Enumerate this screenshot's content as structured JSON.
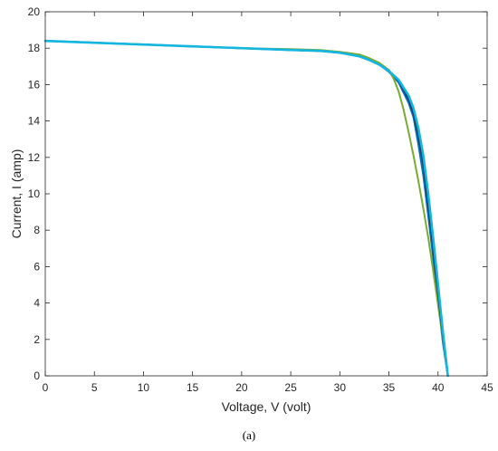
{
  "chart_data": {
    "type": "line",
    "xlabel": "Voltage, V (volt)",
    "ylabel": "Current, I (amp)",
    "xlim": [
      0,
      45
    ],
    "ylim": [
      0,
      20
    ],
    "xticks": [
      0,
      5,
      10,
      15,
      20,
      25,
      30,
      35,
      40,
      45
    ],
    "yticks": [
      0,
      2,
      4,
      6,
      8,
      10,
      12,
      14,
      16,
      18,
      20
    ],
    "grid": false,
    "legend": "none",
    "series": [
      {
        "color": "#0072BD",
        "width": 2,
        "x": [
          0,
          5,
          10,
          15,
          20,
          25,
          28,
          30,
          32,
          33,
          34,
          35,
          36,
          37,
          37.5,
          38,
          38.5,
          39,
          39.5,
          40,
          40.5,
          41
        ],
        "y": [
          18.4,
          18.3,
          18.2,
          18.1,
          18.0,
          17.9,
          17.85,
          17.75,
          17.55,
          17.35,
          17.1,
          16.7,
          16.1,
          15.0,
          14.2,
          12.7,
          11.0,
          8.8,
          6.5,
          4.2,
          1.8,
          0
        ]
      },
      {
        "color": "#77AC30",
        "width": 2,
        "x": [
          0,
          5,
          10,
          15,
          20,
          25,
          28,
          30,
          32,
          33,
          34,
          35,
          35.5,
          36,
          36.5,
          37,
          37.5,
          38,
          38.5,
          39,
          39.5,
          40,
          40.5,
          41
        ],
        "y": [
          18.4,
          18.3,
          18.2,
          18.1,
          18.0,
          17.95,
          17.9,
          17.8,
          17.65,
          17.45,
          17.2,
          16.8,
          16.3,
          15.6,
          14.6,
          13.4,
          12.1,
          10.7,
          9.2,
          7.6,
          5.8,
          3.9,
          2.0,
          0
        ]
      },
      {
        "color": "#1F3A60",
        "width": 2,
        "x": [
          0,
          5,
          10,
          15,
          20,
          25,
          28,
          30,
          32,
          33,
          34,
          35,
          36,
          37,
          37.5,
          38,
          38.5,
          39,
          39.5,
          40,
          40.5,
          41
        ],
        "y": [
          18.4,
          18.3,
          18.2,
          18.1,
          18.0,
          17.9,
          17.85,
          17.75,
          17.55,
          17.35,
          17.1,
          16.75,
          16.2,
          15.2,
          14.4,
          13.2,
          11.6,
          9.4,
          7.0,
          4.5,
          2.1,
          0
        ]
      },
      {
        "color": "#14B6E0",
        "width": 2.6,
        "x": [
          0,
          5,
          10,
          15,
          20,
          25,
          28,
          30,
          32,
          33,
          34,
          35,
          36,
          37,
          37.5,
          38,
          38.5,
          39,
          39.5,
          40,
          40.5,
          41
        ],
        "y": [
          18.4,
          18.3,
          18.2,
          18.1,
          18.0,
          17.9,
          17.85,
          17.75,
          17.55,
          17.35,
          17.1,
          16.75,
          16.25,
          15.4,
          14.7,
          13.6,
          12.1,
          10.0,
          7.6,
          5.0,
          2.4,
          0
        ]
      }
    ]
  },
  "caption": "(a)"
}
